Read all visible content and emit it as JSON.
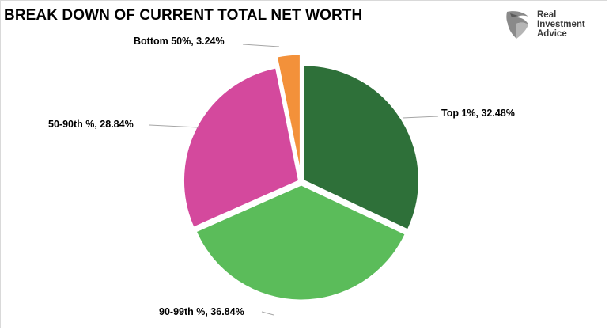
{
  "brand": {
    "line1": "Real",
    "line2": "Investment",
    "line3": "Advice"
  },
  "chart_data": {
    "type": "pie",
    "title": "BREAK DOWN OF CURRENT TOTAL NET WORTH",
    "slices": [
      {
        "name": "Top 1%",
        "value": 32.48,
        "label": "Top 1%, 32.48%",
        "color": "#2e7039"
      },
      {
        "name": "90-99th %",
        "value": 36.84,
        "label": "90-99th %, 36.84%",
        "color": "#5bbc5a"
      },
      {
        "name": "50-90th %",
        "value": 28.84,
        "label": "50-90th %, 28.84%",
        "color": "#d4499d"
      },
      {
        "name": "Bottom 50%",
        "value": 3.24,
        "label": "Bottom 50%, 3.24%",
        "color": "#f3913a"
      }
    ],
    "start_angle_deg": 0,
    "direction": "clockwise",
    "exploded": true
  }
}
